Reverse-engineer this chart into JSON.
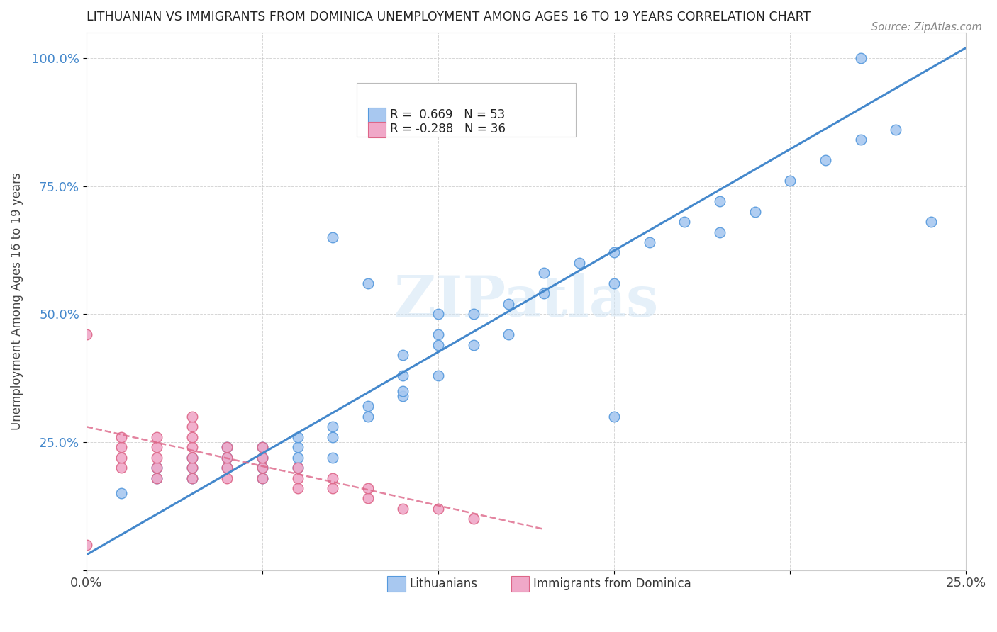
{
  "title": "LITHUANIAN VS IMMIGRANTS FROM DOMINICA UNEMPLOYMENT AMONG AGES 16 TO 19 YEARS CORRELATION CHART",
  "source": "Source: ZipAtlas.com",
  "ylabel": "Unemployment Among Ages 16 to 19 years",
  "xlim": [
    0.0,
    0.25
  ],
  "ylim": [
    0.0,
    1.05
  ],
  "xticks": [
    0.0,
    0.05,
    0.1,
    0.15,
    0.2,
    0.25
  ],
  "yticks": [
    0.0,
    0.25,
    0.5,
    0.75,
    1.0
  ],
  "xticklabels": [
    "0.0%",
    "",
    "",
    "",
    "",
    "25.0%"
  ],
  "yticklabels": [
    "",
    "25.0%",
    "50.0%",
    "75.0%",
    "100.0%"
  ],
  "blue_color": "#a8c8f0",
  "pink_color": "#f0a8c8",
  "blue_edge_color": "#5599dd",
  "pink_edge_color": "#dd6688",
  "blue_line_color": "#4488cc",
  "pink_line_color": "#cc6688",
  "watermark_color": "#d0e4f5",
  "watermark": "ZIPatlas",
  "legend1_R": "0.669",
  "legend1_N": "53",
  "legend2_R": "-0.288",
  "legend2_N": "36",
  "blue_scatter_x": [
    0.01,
    0.02,
    0.02,
    0.03,
    0.03,
    0.03,
    0.04,
    0.04,
    0.04,
    0.05,
    0.05,
    0.05,
    0.05,
    0.06,
    0.06,
    0.06,
    0.06,
    0.07,
    0.07,
    0.07,
    0.08,
    0.08,
    0.09,
    0.09,
    0.09,
    0.1,
    0.1,
    0.1,
    0.11,
    0.11,
    0.12,
    0.12,
    0.13,
    0.13,
    0.14,
    0.15,
    0.15,
    0.16,
    0.17,
    0.18,
    0.18,
    0.19,
    0.2,
    0.21,
    0.22,
    0.23,
    0.24,
    0.07,
    0.08,
    0.09,
    0.1,
    0.22,
    0.15
  ],
  "blue_scatter_y": [
    0.15,
    0.18,
    0.2,
    0.18,
    0.2,
    0.22,
    0.2,
    0.22,
    0.24,
    0.18,
    0.2,
    0.22,
    0.24,
    0.2,
    0.22,
    0.24,
    0.26,
    0.22,
    0.26,
    0.28,
    0.3,
    0.32,
    0.34,
    0.38,
    0.42,
    0.38,
    0.44,
    0.46,
    0.44,
    0.5,
    0.46,
    0.52,
    0.54,
    0.58,
    0.6,
    0.56,
    0.62,
    0.64,
    0.68,
    0.66,
    0.72,
    0.7,
    0.76,
    0.8,
    0.84,
    0.86,
    0.68,
    0.65,
    0.56,
    0.35,
    0.5,
    1.0,
    0.3
  ],
  "pink_scatter_x": [
    0.0,
    0.0,
    0.01,
    0.01,
    0.01,
    0.01,
    0.02,
    0.02,
    0.02,
    0.02,
    0.02,
    0.03,
    0.03,
    0.03,
    0.03,
    0.03,
    0.03,
    0.03,
    0.04,
    0.04,
    0.04,
    0.04,
    0.05,
    0.05,
    0.05,
    0.05,
    0.06,
    0.06,
    0.06,
    0.07,
    0.07,
    0.08,
    0.08,
    0.09,
    0.1,
    0.11
  ],
  "pink_scatter_y": [
    0.46,
    0.05,
    0.2,
    0.22,
    0.24,
    0.26,
    0.18,
    0.2,
    0.22,
    0.24,
    0.26,
    0.18,
    0.2,
    0.22,
    0.24,
    0.26,
    0.28,
    0.3,
    0.18,
    0.2,
    0.22,
    0.24,
    0.18,
    0.2,
    0.22,
    0.24,
    0.16,
    0.18,
    0.2,
    0.16,
    0.18,
    0.14,
    0.16,
    0.12,
    0.12,
    0.1
  ]
}
